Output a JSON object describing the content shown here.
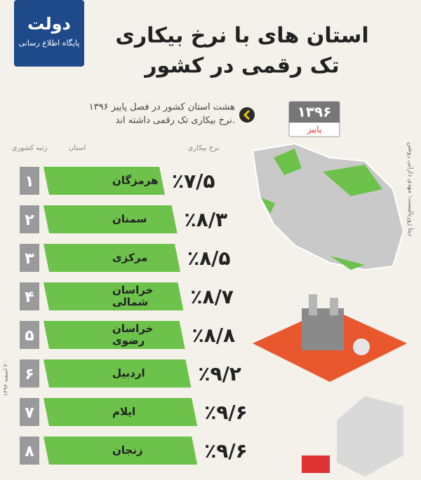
{
  "chart_data": {
    "type": "bar",
    "logo": [
      "دولت",
      "پایگاه اطلاع رسانی"
    ],
    "title": [
      "استان های با نرخ بیکاری",
      "تک رقمی در کشور"
    ],
    "subtitle": [
      "هشت استان کشور در فصل پاییز ۱۳۹۶",
      "نرخ بیکاری تک رقمی داشته اند."
    ],
    "calendar": [
      "۱۳۹۶",
      "پاییز"
    ],
    "column_headers": [
      "رتبه کشوری",
      "استان",
      "نرخ بیکاری"
    ],
    "credit": "دیتا ژورنالیست: مهدی دارابی روشن",
    "date": "۲۰ اسفند ۱۳۹۶",
    "ranks": [
      "۱",
      "۲",
      "۳",
      "۴",
      "۵",
      "۶",
      "۷",
      "۸"
    ],
    "categories": [
      [
        "هرمزگان"
      ],
      [
        "سمنان"
      ],
      [
        "مرکزی"
      ],
      [
        "خراسان",
        "شمالی"
      ],
      [
        "خراسان",
        "رضوی"
      ],
      [
        "اردبیل"
      ],
      [
        "ایلام"
      ],
      [
        "زنجان"
      ]
    ],
    "values": [
      7.5,
      8.3,
      8.5,
      8.7,
      8.8,
      9.2,
      9.6,
      9.6
    ],
    "value_labels": [
      "٪۷/۵",
      "٪۸/۳",
      "٪۸/۵",
      "٪۸/۷",
      "٪۸/۸",
      "٪۹/۲",
      "٪۹/۶",
      "٪۹/۶"
    ],
    "color": "#6cc24a"
  }
}
